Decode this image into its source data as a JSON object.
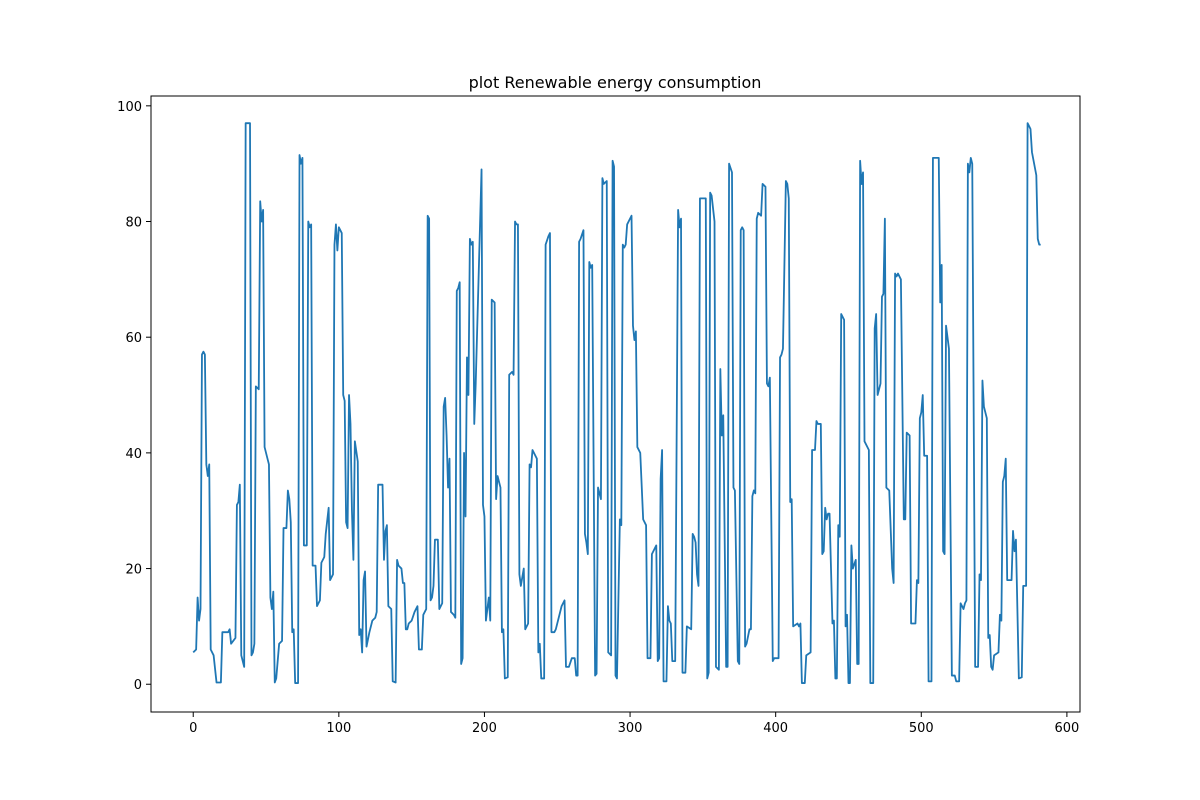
{
  "chart_data": {
    "type": "line",
    "title": "plot Renewable energy consumption",
    "x": [
      0,
      2,
      3,
      4,
      5,
      6,
      7,
      8,
      9,
      10,
      11,
      12,
      14,
      16,
      19,
      20,
      24,
      25,
      26,
      29,
      30,
      31,
      32,
      33,
      35,
      36,
      39,
      40,
      41,
      42,
      43,
      45,
      46,
      47,
      48,
      49,
      51,
      52,
      53,
      54,
      55,
      56,
      57,
      59,
      61,
      62,
      64,
      65,
      66,
      67,
      68,
      69,
      70,
      72,
      73,
      74,
      75,
      76,
      78,
      79,
      80,
      81,
      82,
      84,
      85,
      87,
      88,
      90,
      91,
      93,
      94,
      96,
      97,
      98,
      99,
      100,
      102,
      103,
      104,
      105,
      106,
      107,
      108,
      109,
      110,
      111,
      113,
      114,
      115,
      116,
      117,
      118,
      119,
      121,
      123,
      125,
      126,
      127,
      130,
      131,
      132,
      133,
      134,
      136,
      137,
      139,
      140,
      141,
      143,
      144,
      145,
      146,
      147,
      148,
      150,
      152,
      154,
      155,
      157,
      158,
      160,
      161,
      162,
      163,
      164,
      165,
      166,
      168,
      169,
      171,
      172,
      173,
      174,
      175,
      176,
      177,
      179,
      180,
      181,
      182,
      183,
      184,
      185,
      186,
      187,
      188,
      189,
      190,
      191,
      192,
      193,
      194,
      198,
      199,
      200,
      201,
      203,
      204,
      205,
      207,
      208,
      209,
      211,
      212,
      213,
      214,
      216,
      217,
      219,
      220,
      221,
      222,
      223,
      224,
      225,
      227,
      228,
      230,
      231,
      232,
      233,
      236,
      237,
      238,
      239,
      241,
      242,
      244,
      245,
      246,
      248,
      249,
      253,
      255,
      256,
      258,
      260,
      262,
      263,
      264,
      265,
      266,
      268,
      269,
      270,
      271,
      272,
      273,
      274,
      276,
      277,
      278,
      279,
      280,
      281,
      282,
      284,
      285,
      287,
      288,
      289,
      290,
      291,
      293,
      294,
      295,
      296,
      297,
      298,
      301,
      302,
      303,
      304,
      305,
      307,
      309,
      311,
      312,
      314,
      315,
      318,
      319,
      320,
      321,
      322,
      323,
      325,
      326,
      327,
      328,
      329,
      331,
      333,
      334,
      335,
      336,
      338,
      339,
      342,
      343,
      344,
      345,
      346,
      347,
      348,
      352,
      353,
      354,
      355,
      356,
      358,
      359,
      361,
      362,
      363,
      364,
      366,
      367,
      368,
      370,
      371,
      372,
      374,
      375,
      376,
      377,
      378,
      379,
      380,
      382,
      383,
      384,
      385,
      386,
      387,
      388,
      390,
      391,
      393,
      394,
      395,
      396,
      398,
      399,
      402,
      403,
      404,
      405,
      407,
      408,
      409,
      410,
      411,
      412,
      415,
      416,
      417,
      418,
      420,
      421,
      424,
      425,
      427,
      428,
      429,
      431,
      432,
      433,
      434,
      435,
      436,
      437,
      439,
      440,
      441,
      442,
      443,
      444,
      445,
      447,
      448,
      449,
      450,
      451,
      452,
      453,
      455,
      456,
      457,
      458,
      459,
      460,
      461,
      464,
      465,
      467,
      468,
      469,
      470,
      472,
      473,
      474,
      475,
      476,
      478,
      480,
      481,
      482,
      483,
      484,
      486,
      488,
      489,
      490,
      492,
      493,
      496,
      497,
      498,
      499,
      500,
      501,
      502,
      504,
      505,
      507,
      508,
      512,
      513,
      514,
      515,
      516,
      517,
      519,
      521,
      523,
      524,
      526,
      527,
      529,
      530,
      531,
      532,
      533,
      534,
      535,
      537,
      539,
      540,
      541,
      542,
      543,
      545,
      546,
      547,
      548,
      549,
      550,
      553,
      554,
      555,
      556,
      557,
      558,
      559,
      562,
      563,
      564,
      565,
      567,
      569,
      570,
      572,
      573,
      574,
      575,
      576,
      579,
      580,
      581,
      582
    ],
    "series": [
      {
        "color": "#1f77b4",
        "values": [
          5.5,
          6,
          15,
          11,
          13,
          57,
          57.5,
          57,
          38,
          36,
          38,
          6,
          5,
          0.3,
          0.3,
          9,
          9,
          9.5,
          7,
          8,
          31,
          31.5,
          34.5,
          5,
          3,
          97,
          97,
          5,
          5.5,
          7,
          51.5,
          51,
          83.5,
          80,
          82,
          41,
          39,
          38,
          15,
          13,
          16,
          0.3,
          1,
          7,
          7.5,
          27,
          27,
          33.5,
          32,
          28,
          9,
          9.5,
          0.2,
          0.2,
          91.5,
          90,
          91,
          24,
          24,
          80,
          79,
          79.5,
          20.5,
          20.5,
          13.5,
          14.5,
          21,
          22,
          26,
          30.5,
          18,
          19,
          76,
          79.5,
          75,
          79,
          78,
          50,
          49,
          28,
          27,
          50,
          45,
          30,
          21.5,
          42,
          38.5,
          8.5,
          9.5,
          5.5,
          18,
          19.5,
          6.5,
          9,
          11,
          11.5,
          12.5,
          34.5,
          34.5,
          21.5,
          26.5,
          27.5,
          13.5,
          13,
          0.5,
          0.3,
          21.5,
          20.5,
          20,
          17.5,
          17.5,
          9.5,
          9.5,
          10.5,
          11,
          12.5,
          13.5,
          6,
          6,
          12,
          13,
          81,
          80.5,
          14.5,
          15,
          17,
          25,
          25,
          13,
          14,
          48,
          49.5,
          43,
          34,
          39,
          12.5,
          12,
          11.5,
          68,
          68.5,
          69.5,
          3.5,
          4.5,
          40,
          29,
          56.5,
          50,
          77,
          76,
          76.5,
          45,
          52,
          89,
          31,
          29,
          11,
          15,
          11,
          66.5,
          66,
          32,
          36,
          34,
          9,
          9.5,
          1,
          1.2,
          53.5,
          54,
          53.5,
          80,
          79.5,
          79.5,
          19,
          17,
          20,
          9.5,
          10.5,
          38,
          37.5,
          40.5,
          39,
          5.5,
          7,
          1,
          1,
          76,
          77.5,
          78,
          9,
          9,
          9.5,
          13.5,
          14.5,
          3,
          3,
          4.5,
          4.5,
          1.5,
          1.5,
          76.5,
          77,
          78.5,
          26,
          24.5,
          22.5,
          73,
          72,
          72.5,
          1.5,
          1.8,
          34,
          33,
          32,
          87.5,
          86.5,
          87,
          5.5,
          5,
          90.5,
          89.5,
          1.5,
          1,
          28.5,
          27.5,
          76,
          75.5,
          76,
          79.5,
          81,
          62,
          59.5,
          61,
          41,
          40,
          28.5,
          27.5,
          4.5,
          4.5,
          22.5,
          24,
          4,
          4.5,
          35.5,
          40.5,
          0.5,
          0.5,
          13.5,
          11,
          10.5,
          4,
          4,
          82,
          79,
          80.5,
          2,
          2,
          10,
          9.5,
          26,
          25.5,
          24.5,
          19,
          17,
          84,
          84,
          1,
          2,
          85,
          84.5,
          80,
          3,
          2.5,
          54.5,
          43,
          46.5,
          3,
          3,
          90,
          88.5,
          34,
          33.5,
          4,
          3.5,
          78.5,
          79,
          78.5,
          6.5,
          7,
          9.5,
          9.5,
          32.5,
          33.5,
          33,
          80.5,
          81.5,
          81,
          86.5,
          86,
          52,
          51.5,
          53,
          4,
          4.5,
          4.5,
          56.5,
          57,
          58,
          87,
          86.5,
          84,
          31.5,
          32,
          10,
          10.5,
          10,
          10.5,
          0.2,
          0.2,
          5,
          5.5,
          40.5,
          40.5,
          45.5,
          45,
          45,
          22.5,
          23,
          30.5,
          28.5,
          29.5,
          29.5,
          10.5,
          11,
          1,
          1,
          27.5,
          25.5,
          64,
          63,
          10,
          12,
          0.2,
          0.2,
          24,
          20,
          21.5,
          3.5,
          3.5,
          90.5,
          86.5,
          88.5,
          42,
          40.5,
          0.2,
          0.2,
          61.5,
          64,
          50,
          52,
          67,
          67.5,
          80.5,
          34,
          33.5,
          20,
          17.5,
          71,
          70.5,
          71,
          70,
          28.5,
          28.5,
          43.5,
          43,
          10.5,
          10.5,
          18,
          17.5,
          46,
          47,
          50,
          39.5,
          39.5,
          0.5,
          0.5,
          91,
          91,
          66,
          72.5,
          23,
          22.5,
          62,
          58,
          1.5,
          1.5,
          0.5,
          0.5,
          14,
          13,
          14,
          14.5,
          90,
          88.5,
          91,
          90,
          3,
          3,
          19,
          18,
          52.5,
          48,
          46,
          8,
          8.5,
          3,
          2.5,
          5,
          5.5,
          12,
          11,
          35,
          36,
          39,
          18,
          18,
          26.5,
          23,
          25,
          1,
          1.2,
          17,
          17,
          97,
          96.5,
          96,
          92,
          88,
          77,
          76,
          76
        ]
      }
    ],
    "xlim": [
      -29,
      609
    ],
    "xticks": [
      0,
      100,
      200,
      300,
      400,
      500,
      600
    ],
    "ylim": [
      -4.8,
      101.7
    ],
    "yticks": [
      0,
      20,
      40,
      60,
      80,
      100
    ]
  }
}
